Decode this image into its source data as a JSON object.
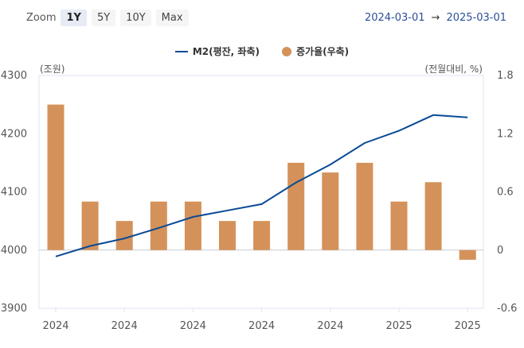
{
  "toolbar": {
    "zoom_label": "Zoom",
    "buttons": [
      "1Y",
      "5Y",
      "10Y",
      "Max"
    ],
    "active": "1Y",
    "range_start": "2024-03-01",
    "range_arrow": "→",
    "range_end": "2025-03-01"
  },
  "colors": {
    "line": "#0a4a96",
    "bar": "#d4925a",
    "range_text": "#2a4f9a"
  },
  "chart_data": {
    "type": "bar+line",
    "legend_position": "top-center",
    "left_axis": {
      "unit_label": "(조원)",
      "range": [
        3900,
        4300
      ],
      "ticks": [
        3900,
        4000,
        4100,
        4200,
        4300
      ]
    },
    "right_axis": {
      "unit_label": "(전월대비, %)",
      "range": [
        -0.6,
        1.8
      ],
      "ticks": [
        "-0.6",
        "0",
        "0.6",
        "1.2",
        "1.8"
      ]
    },
    "x_tick_labels": [
      "2024",
      "2024",
      "2024",
      "2024",
      "2024",
      "2025",
      "2025"
    ],
    "categories": [
      "2024",
      "",
      "2024",
      "",
      "2024",
      "",
      "2024",
      "",
      "2024",
      "",
      "2025",
      "",
      "2025"
    ],
    "series": [
      {
        "name": "M2(평잔, 좌축)",
        "type": "line",
        "axis": "left",
        "values": [
          3989,
          4007,
          4020,
          4038,
          4057,
          4068,
          4079,
          4116,
          4147,
          4184,
          4205,
          4232,
          4228
        ]
      },
      {
        "name": "증가율(우축)",
        "type": "bar",
        "axis": "right",
        "values": [
          1.5,
          0.5,
          0.3,
          0.5,
          0.5,
          0.3,
          0.3,
          0.9,
          0.8,
          0.9,
          0.5,
          0.7,
          -0.1
        ]
      }
    ]
  }
}
